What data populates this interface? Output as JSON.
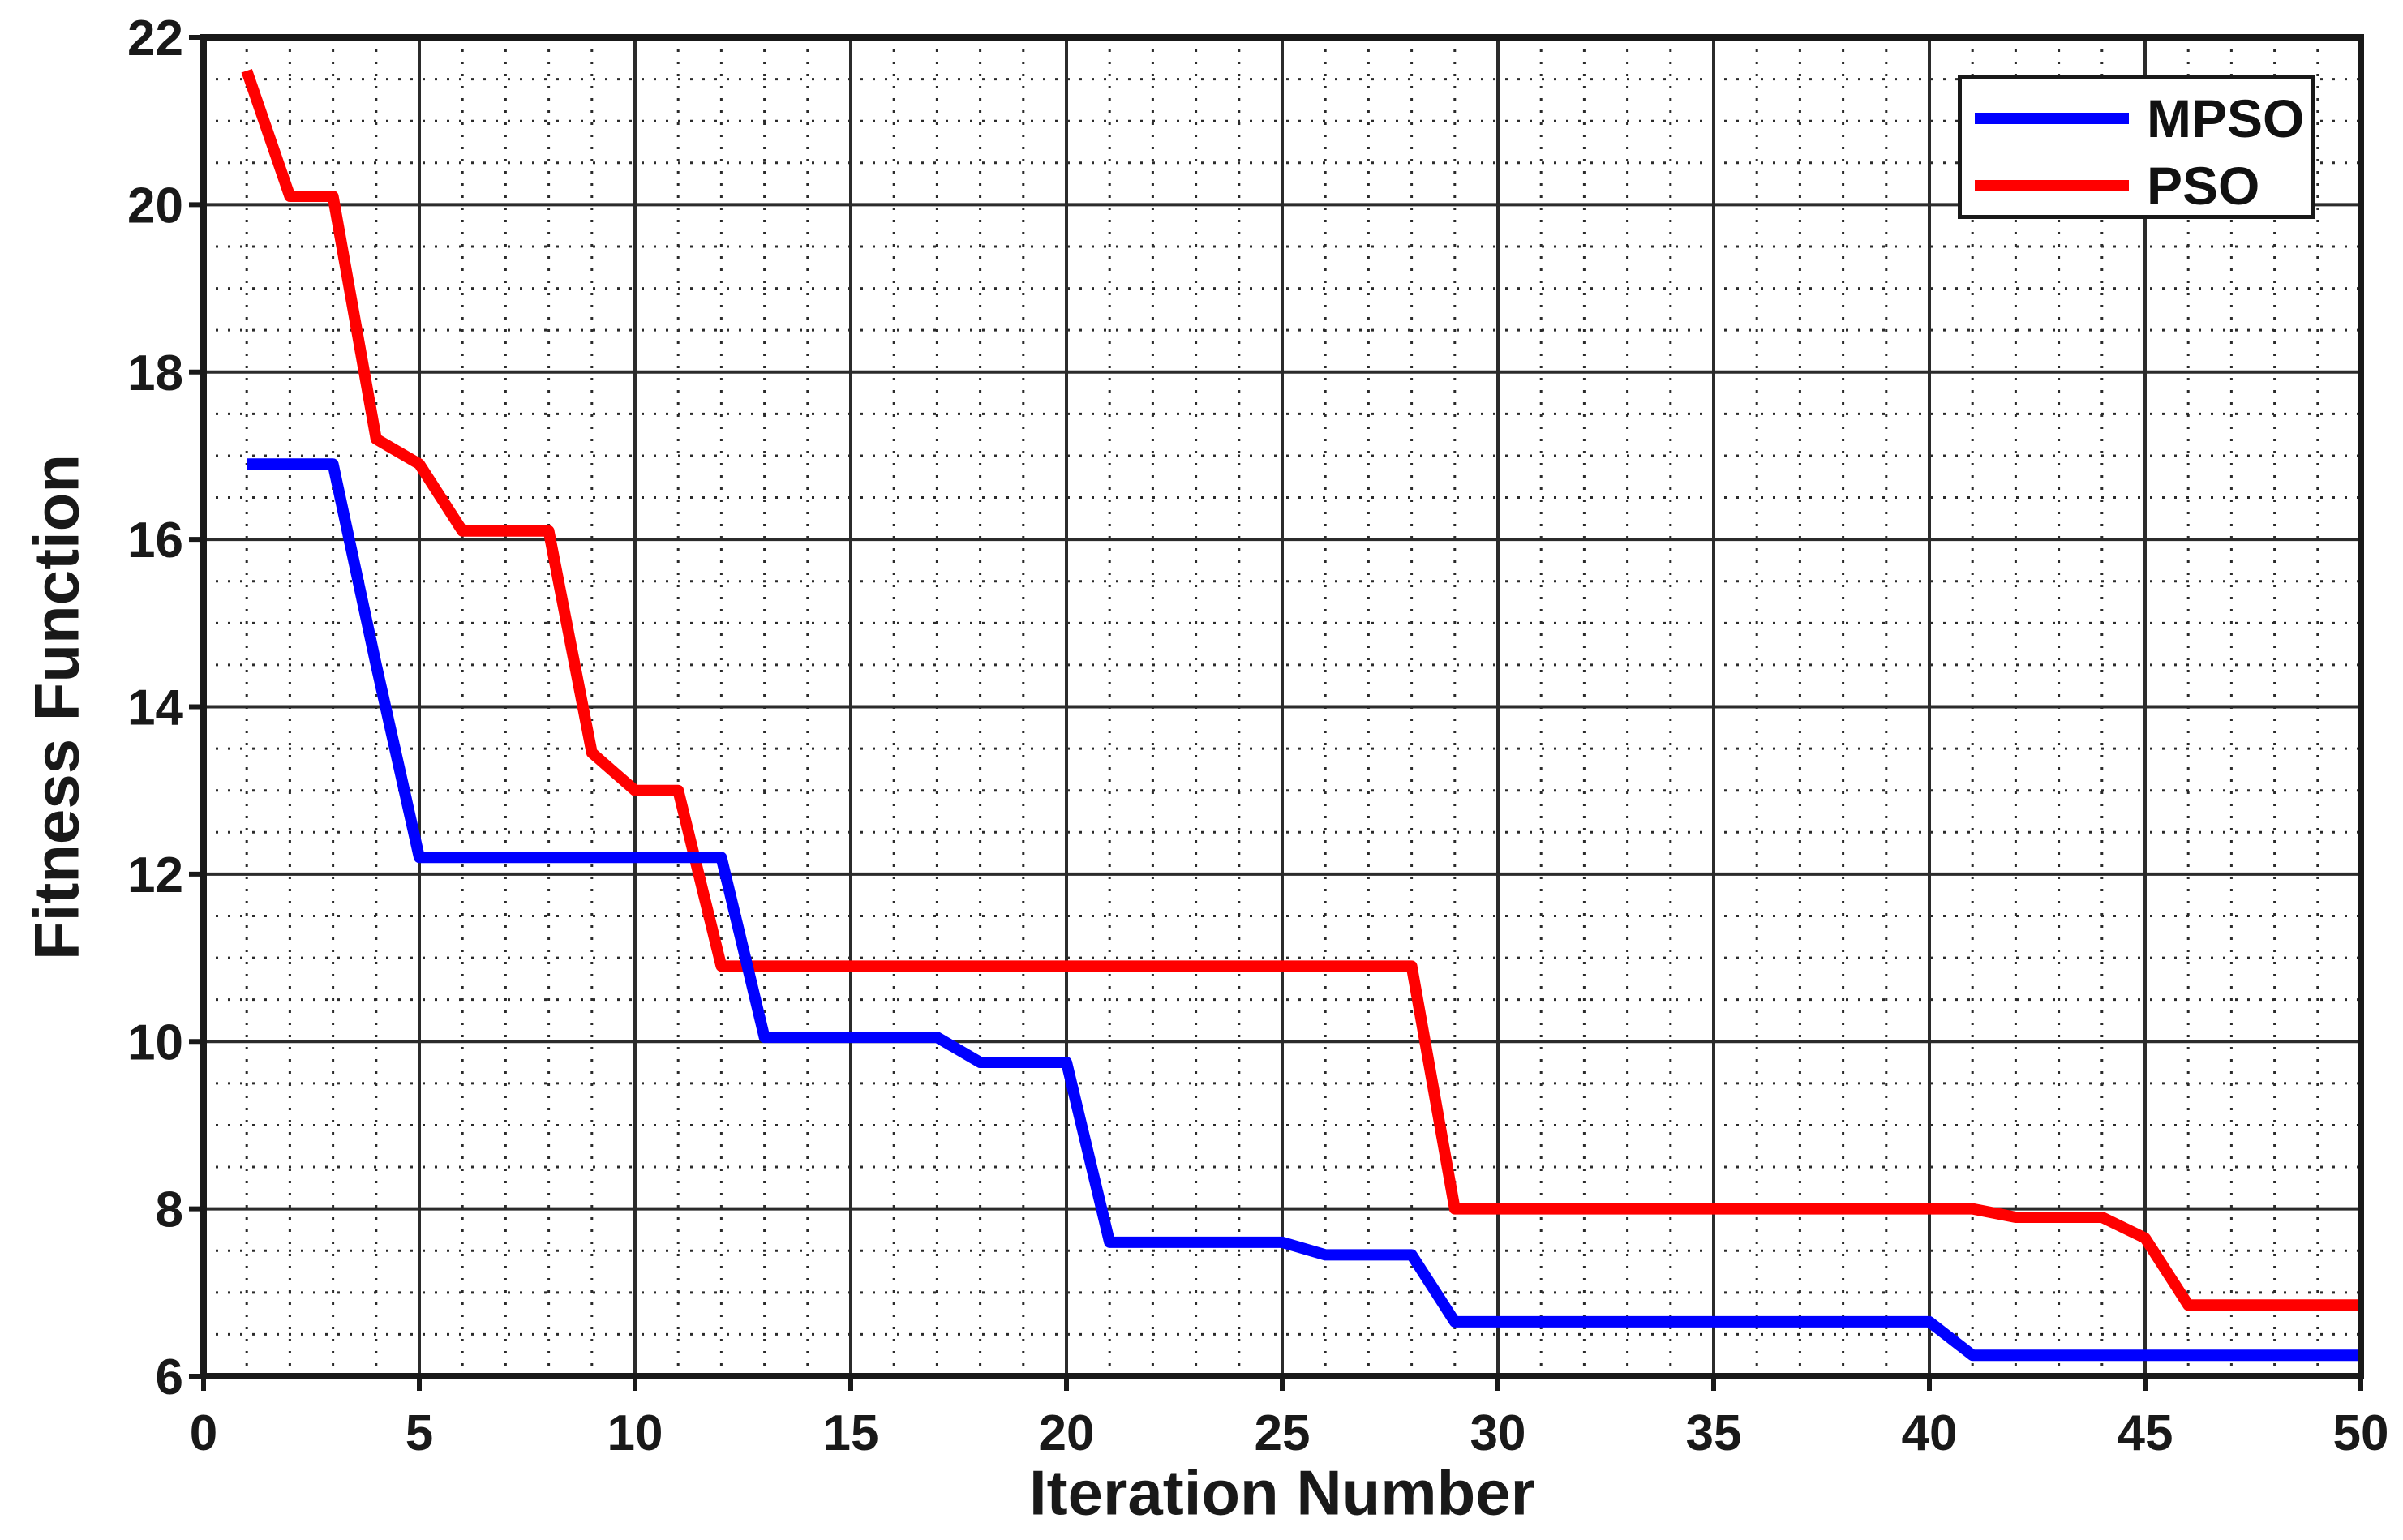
{
  "figure": {
    "background": "#ffffff",
    "text_color": "#191919",
    "grid_color": "#2b2b2b",
    "axis_color": "#191919"
  },
  "chart_data": {
    "type": "line",
    "title": "",
    "xlabel": "Iteration Number",
    "ylabel": "Fitness Function",
    "xlim": [
      0,
      50
    ],
    "ylim": [
      6,
      22
    ],
    "xticks": [
      0,
      5,
      10,
      15,
      20,
      25,
      30,
      35,
      40,
      45,
      50
    ],
    "yticks": [
      6,
      8,
      10,
      12,
      14,
      16,
      18,
      20,
      22
    ],
    "grid": "major solid + minor dotted",
    "minor_grid": {
      "x_step": 1,
      "y_step": 0.5
    },
    "legend_position": "top-right inside",
    "x": [
      1,
      2,
      3,
      4,
      5,
      6,
      7,
      8,
      9,
      10,
      11,
      12,
      13,
      14,
      15,
      16,
      17,
      18,
      19,
      20,
      21,
      22,
      23,
      24,
      25,
      26,
      27,
      28,
      29,
      30,
      31,
      32,
      33,
      34,
      35,
      36,
      37,
      38,
      39,
      40,
      41,
      42,
      43,
      44,
      45,
      46,
      47,
      48,
      49,
      50
    ],
    "series": [
      {
        "name": "MPSO",
        "color": "#0000ff",
        "values": [
          16.9,
          16.9,
          16.9,
          14.5,
          12.2,
          12.2,
          12.2,
          12.2,
          12.2,
          12.2,
          12.2,
          12.2,
          10.05,
          10.05,
          10.05,
          10.05,
          10.05,
          9.75,
          9.75,
          9.75,
          7.6,
          7.6,
          7.6,
          7.6,
          7.6,
          7.45,
          7.45,
          7.45,
          6.65,
          6.65,
          6.65,
          6.65,
          6.65,
          6.65,
          6.65,
          6.65,
          6.65,
          6.65,
          6.65,
          6.65,
          6.25,
          6.25,
          6.25,
          6.25,
          6.25,
          6.25,
          6.25,
          6.25,
          6.25,
          6.25
        ]
      },
      {
        "name": "PSO",
        "color": "#ff0000",
        "values": [
          21.6,
          20.1,
          20.1,
          17.2,
          16.9,
          16.1,
          16.1,
          16.1,
          13.45,
          13.0,
          13.0,
          10.9,
          10.9,
          10.9,
          10.9,
          10.9,
          10.9,
          10.9,
          10.9,
          10.9,
          10.9,
          10.9,
          10.9,
          10.9,
          10.9,
          10.9,
          10.9,
          10.9,
          8.0,
          8.0,
          8.0,
          8.0,
          8.0,
          8.0,
          8.0,
          8.0,
          8.0,
          8.0,
          8.0,
          8.0,
          8.0,
          7.9,
          7.9,
          7.9,
          7.65,
          6.85,
          6.85,
          6.85,
          6.85,
          6.85
        ]
      }
    ]
  },
  "legend": {
    "entries": [
      {
        "label": "MPSO",
        "color": "#0000ff"
      },
      {
        "label": "PSO",
        "color": "#ff0000"
      }
    ]
  }
}
